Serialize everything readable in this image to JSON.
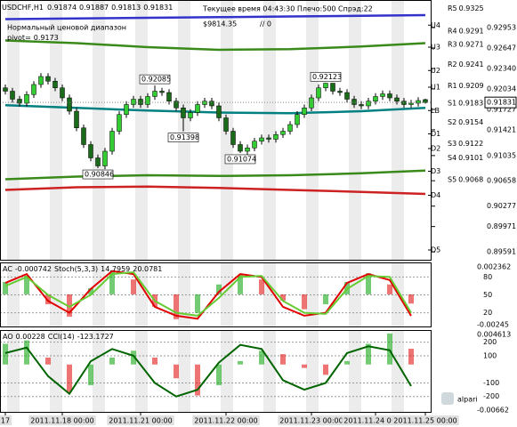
{
  "chart_data": [
    {
      "type": "candlestick",
      "title": "USDCHF,H1",
      "open": [
        0.9205,
        0.92,
        0.9188,
        0.9182,
        0.9195,
        0.921,
        0.9222,
        0.9215,
        0.9205,
        0.919,
        0.917,
        0.9145,
        0.912,
        0.91,
        0.9088,
        0.911,
        0.914,
        0.9165,
        0.918,
        0.9188,
        0.918,
        0.9192,
        0.92,
        0.9198,
        0.9185,
        0.9175,
        0.916,
        0.9168,
        0.918,
        0.9185,
        0.9178,
        0.916,
        0.914,
        0.912,
        0.911,
        0.9115,
        0.9125,
        0.913,
        0.9128,
        0.9135,
        0.914,
        0.915,
        0.9165,
        0.9175,
        0.919,
        0.9205,
        0.9212,
        0.92,
        0.9198,
        0.9188,
        0.918,
        0.9178,
        0.9185,
        0.9192,
        0.9196,
        0.919,
        0.9185,
        0.918,
        0.9182,
        0.91874
      ],
      "high": [
        0.921,
        0.9205,
        0.9193,
        0.92,
        0.9215,
        0.9227,
        0.9227,
        0.922,
        0.921,
        0.9195,
        0.9175,
        0.915,
        0.9125,
        0.9105,
        0.9115,
        0.9145,
        0.917,
        0.9185,
        0.9193,
        0.9193,
        0.9197,
        0.92085,
        0.9205,
        0.9203,
        0.919,
        0.918,
        0.9173,
        0.9185,
        0.919,
        0.919,
        0.9183,
        0.9165,
        0.9145,
        0.9125,
        0.912,
        0.913,
        0.9135,
        0.9135,
        0.914,
        0.9145,
        0.9155,
        0.917,
        0.918,
        0.9195,
        0.921,
        0.92123,
        0.9212,
        0.9205,
        0.9203,
        0.9193,
        0.9185,
        0.919,
        0.9197,
        0.9201,
        0.9201,
        0.9195,
        0.919,
        0.9187,
        0.9191,
        0.91887
      ],
      "low": [
        0.9195,
        0.9183,
        0.9177,
        0.9177,
        0.919,
        0.9205,
        0.921,
        0.92,
        0.9185,
        0.9165,
        0.914,
        0.9115,
        0.9095,
        0.90846,
        0.9083,
        0.9105,
        0.9135,
        0.916,
        0.9175,
        0.9175,
        0.9175,
        0.9187,
        0.9193,
        0.918,
        0.917,
        0.91398,
        0.9155,
        0.9163,
        0.9175,
        0.9173,
        0.9155,
        0.9135,
        0.9115,
        0.91074,
        0.9105,
        0.911,
        0.912,
        0.9123,
        0.9123,
        0.913,
        0.9135,
        0.9145,
        0.916,
        0.917,
        0.9185,
        0.92,
        0.9195,
        0.9193,
        0.9183,
        0.9175,
        0.9173,
        0.9173,
        0.918,
        0.9187,
        0.9185,
        0.918,
        0.9175,
        0.9175,
        0.9177,
        0.91813
      ],
      "close": [
        0.92,
        0.9188,
        0.9182,
        0.9195,
        0.921,
        0.9222,
        0.9215,
        0.9205,
        0.919,
        0.917,
        0.9145,
        0.912,
        0.91,
        0.9088,
        0.911,
        0.914,
        0.9165,
        0.918,
        0.9188,
        0.918,
        0.9192,
        0.92,
        0.9198,
        0.9185,
        0.9175,
        0.916,
        0.9168,
        0.918,
        0.9185,
        0.9178,
        0.916,
        0.914,
        0.912,
        0.911,
        0.9115,
        0.9125,
        0.913,
        0.9128,
        0.9135,
        0.914,
        0.915,
        0.9165,
        0.9175,
        0.919,
        0.9205,
        0.9212,
        0.92,
        0.9198,
        0.9188,
        0.918,
        0.9178,
        0.9185,
        0.9192,
        0.9196,
        0.919,
        0.9185,
        0.918,
        0.9182,
        0.9186,
        0.91831
      ],
      "up_color": "#33cc33",
      "down_color": "#1a6b1a",
      "ylim": [
        0.895,
        0.933
      ],
      "yticks": [
        0.92953,
        0.92647,
        {
          "value": 0.9234,
          "label": "0.92340"
        },
        0.92034,
        0.91727,
        0.91421,
        0.91035,
        0.90658,
        0.90277,
        0.89971,
        0.89591
      ],
      "levels": [
        {
          "name": "U4",
          "value": 0.9299
        },
        {
          "name": "U3",
          "value": 0.9266
        },
        {
          "name": "U2",
          "value": 0.9231
        },
        {
          "name": "U1",
          "value": 0.9206
        },
        {
          "name": "LB",
          "value": 0.9171
        },
        {
          "name": "D1",
          "value": 0.9136
        },
        {
          "name": "D2",
          "value": 0.9114
        },
        {
          "name": "D3",
          "value": 0.908
        },
        {
          "name": "D4",
          "value": 0.9044
        },
        {
          "name": "D5",
          "value": 0.8962
        }
      ],
      "pivots": [
        {
          "name": "R5",
          "value": 0.9325
        },
        {
          "name": "R4",
          "value": 0.9291
        },
        {
          "name": "R3",
          "value": 0.9271
        },
        {
          "name": "R2",
          "value": 0.9241
        },
        {
          "name": "R1",
          "value": 0.9209
        },
        {
          "name": "S1",
          "value": 0.9183
        },
        {
          "name": "S2",
          "value": 0.9154
        },
        {
          "name": "S3",
          "value": 0.9122
        },
        {
          "name": "S4",
          "value": 0.9101
        },
        {
          "name": "S5",
          "value": 0.9068
        }
      ],
      "overlays": [
        {
          "color": "#3333cc",
          "x": [
            0,
            10,
            20,
            30,
            40,
            50,
            59
          ],
          "values": [
            0.9308,
            0.9309,
            0.931,
            0.9311,
            0.9312,
            0.9313,
            0.9314
          ]
        },
        {
          "color": "#3a8a1a",
          "x": [
            0,
            10,
            20,
            30,
            40,
            50,
            59
          ],
          "values": [
            0.9276,
            0.9272,
            0.9266,
            0.9262,
            0.9263,
            0.9267,
            0.9272
          ]
        },
        {
          "color": "#008080",
          "x": [
            0,
            10,
            20,
            30,
            40,
            50,
            59
          ],
          "values": [
            0.9179,
            0.9175,
            0.9171,
            0.9168,
            0.9167,
            0.917,
            0.9175
          ]
        },
        {
          "color": "#3a8a1a",
          "x": [
            0,
            10,
            20,
            30,
            40,
            50,
            59
          ],
          "values": [
            0.9068,
            0.9072,
            0.9074,
            0.9073,
            0.9074,
            0.9077,
            0.9081
          ]
        },
        {
          "color": "#cc2222",
          "x": [
            0,
            10,
            20,
            30,
            40,
            50,
            59
          ],
          "values": [
            0.9052,
            0.9056,
            0.9057,
            0.9055,
            0.9052,
            0.9049,
            0.9046
          ]
        }
      ],
      "x_labels": [
        {
          "value": 0,
          "label": "17"
        },
        {
          "value": 8,
          "label": "2011.11.18 00:00"
        },
        {
          "value": 19,
          "label": "2011.11.21 00:00"
        },
        {
          "value": 31,
          "label": "2011.11.22 00:00"
        },
        {
          "value": 43,
          "label": "2011.11.23 00:00"
        },
        {
          "value": 52,
          "label": "2011.11.24 00:00"
        },
        {
          "value": 59,
          "label": "2011.11.25 00:00"
        }
      ],
      "info": "Текущее время 04:43:30 Плечо:500 Спрэд:22",
      "balance": "$9814.35",
      "extra": "// 0",
      "range_label": "Нормальный ценовой диапазон",
      "pivot": {
        "label": "pivot=",
        "value": 0.9173
      },
      "logo": "alpari"
    },
    {
      "type": "oscillator",
      "x": [
        0,
        3,
        6,
        9,
        12,
        15,
        18,
        21,
        24,
        27,
        30,
        33,
        36,
        39,
        42,
        45,
        48,
        51,
        54,
        57
      ],
      "series": [
        {
          "name": "AC",
          "kind": "bar",
          "axis": "y2",
          "up_color": "#00a000",
          "down_color": "#e00000",
          "values": [
            0.001,
            0.0015,
            -0.0008,
            -0.0018,
            0.0005,
            0.0018,
            0.0012,
            -0.001,
            -0.002,
            -0.0015,
            0.0008,
            0.0016,
            0.0012,
            -0.0005,
            -0.0012,
            -0.0008,
            0.001,
            0.0017,
            0.0008,
            -0.000742
          ]
        },
        {
          "name": "Stoch(5,3,3)",
          "kind": "line",
          "color": "#e00000",
          "values": [
            70,
            85,
            40,
            20,
            60,
            90,
            85,
            30,
            15,
            10,
            55,
            85,
            80,
            30,
            15,
            20,
            70,
            85,
            75,
            14.7959
          ]
        },
        {
          "kind": "line",
          "color": "#66cc33",
          "values": [
            65,
            80,
            50,
            30,
            50,
            85,
            88,
            40,
            20,
            15,
            45,
            80,
            82,
            40,
            20,
            18,
            60,
            82,
            80,
            20.0781
          ]
        }
      ],
      "ylim": [
        0,
        100
      ],
      "yticks": [
        20,
        50,
        80
      ],
      "y2lim": [
        -0.00245,
        0.002362
      ],
      "y2ticks": [
        -0.00245,
        0.002362
      ]
    },
    {
      "type": "oscillator",
      "x": [
        0,
        3,
        6,
        9,
        12,
        15,
        18,
        21,
        24,
        27,
        30,
        33,
        36,
        39,
        42,
        45,
        48,
        51,
        54,
        57
      ],
      "series": [
        {
          "name": "AO",
          "kind": "bar",
          "axis": "y2",
          "up_color": "#00a000",
          "down_color": "#e00000",
          "values": [
            0.003,
            0.0035,
            0.001,
            -0.004,
            -0.003,
            0.001,
            0.002,
            0.001,
            -0.002,
            -0.0045,
            -0.003,
            0.0005,
            0.002,
            0.0015,
            -0.0005,
            -0.0015,
            0.0005,
            0.003,
            0.0045,
            0.00228
          ]
        },
        {
          "name": "CCI(14)",
          "kind": "line",
          "color": "#006400",
          "values": [
            120,
            160,
            -50,
            -180,
            60,
            150,
            100,
            -100,
            -200,
            -150,
            50,
            180,
            150,
            -80,
            -150,
            -100,
            120,
            170,
            140,
            -123.1727
          ]
        }
      ],
      "ylim": [
        -300,
        270
      ],
      "yticks": [
        -200,
        -100,
        100,
        200
      ],
      "y2lim": [
        -0.00662,
        0.004613
      ],
      "y2ticks": [
        -0.00662,
        0.004613
      ]
    }
  ]
}
